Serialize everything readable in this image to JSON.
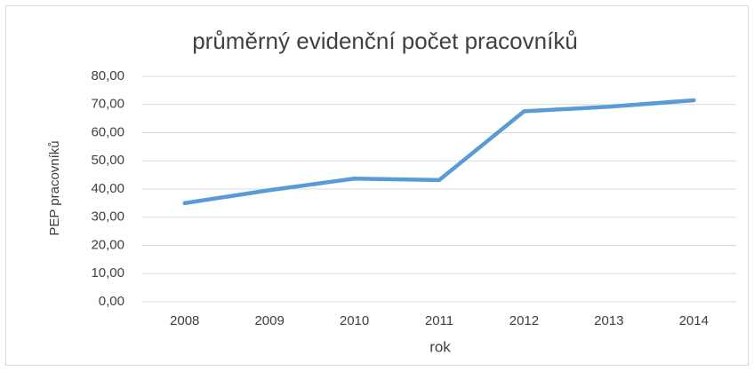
{
  "chart_data": {
    "type": "line",
    "title": "průměrný evidenční počet pracovníků",
    "x_label": "rok",
    "y_label": "PEP pracovníků",
    "categories": [
      "2008",
      "2009",
      "2010",
      "2011",
      "2012",
      "2013",
      "2014"
    ],
    "series": [
      {
        "name": "PEP pracovníků",
        "color": "#5b9bd5",
        "values": [
          35.0,
          39.6,
          43.7,
          43.2,
          67.6,
          69.2,
          71.5
        ]
      }
    ],
    "ylim": [
      0,
      80
    ],
    "yticks": [
      {
        "value": 0,
        "label": "0,00"
      },
      {
        "value": 10,
        "label": "10,00"
      },
      {
        "value": 20,
        "label": "20,00"
      },
      {
        "value": 30,
        "label": "30,00"
      },
      {
        "value": 40,
        "label": "40,00"
      },
      {
        "value": 50,
        "label": "50,00"
      },
      {
        "value": 60,
        "label": "60,00"
      },
      {
        "value": 70,
        "label": "70,00"
      },
      {
        "value": 80,
        "label": "80,00"
      }
    ],
    "grid": true
  }
}
